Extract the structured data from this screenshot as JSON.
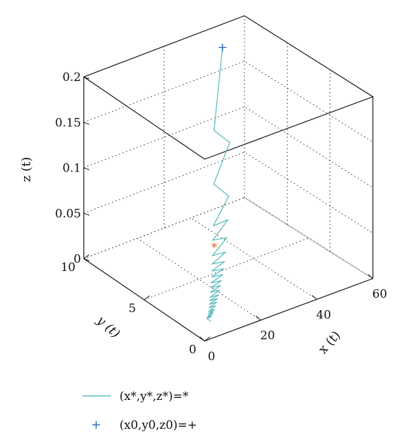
{
  "chart_data": {
    "type": "line3d",
    "xlabel": "x (t)",
    "ylabel": "y (t)",
    "zlabel": "z (t)",
    "xlim": [
      0,
      60
    ],
    "ylim": [
      0,
      10
    ],
    "zlim": [
      0,
      0.2
    ],
    "x_ticks": [
      "0",
      "20",
      "40",
      "60"
    ],
    "y_ticks": [
      "0",
      "5",
      "10"
    ],
    "z_ticks": [
      "0",
      "0.05",
      "0.1",
      "0.15",
      "0.2"
    ],
    "grid": true,
    "series": [
      {
        "name": "(x*,y*,z*)=*",
        "color": "#5bbcbc",
        "z": [
          0.23,
          0.16,
          0.15,
          0.115,
          0.105,
          0.08,
          0.085,
          0.068,
          0.07,
          0.055,
          0.058,
          0.048,
          0.05,
          0.042,
          0.044,
          0.037,
          0.039,
          0.032,
          0.034,
          0.028,
          0.03,
          0.024,
          0.026,
          0.02,
          0.022,
          0.017,
          0.019,
          0.014,
          0.016,
          0.011,
          0.013,
          0.008,
          0.01,
          0.006,
          0.008,
          0.004,
          0.006,
          0.003,
          0.004,
          0.002,
          0.0
        ]
      }
    ],
    "markers": [
      {
        "label": "(x0,y0,z0)=+",
        "symbol": "+",
        "color": "#2f6fb8",
        "z": 0.23
      },
      {
        "label": "*",
        "symbol": "*",
        "color": "#e2662a",
        "z": 0.063
      }
    ],
    "legend": [
      {
        "label": "(x*,y*,z*)=*",
        "kind": "line",
        "color": "#5bbcbc"
      },
      {
        "label": "(x0,y0,z0)=+",
        "kind": "plus",
        "color": "#2f6fb8"
      }
    ],
    "legend_position": "bottom-left"
  }
}
